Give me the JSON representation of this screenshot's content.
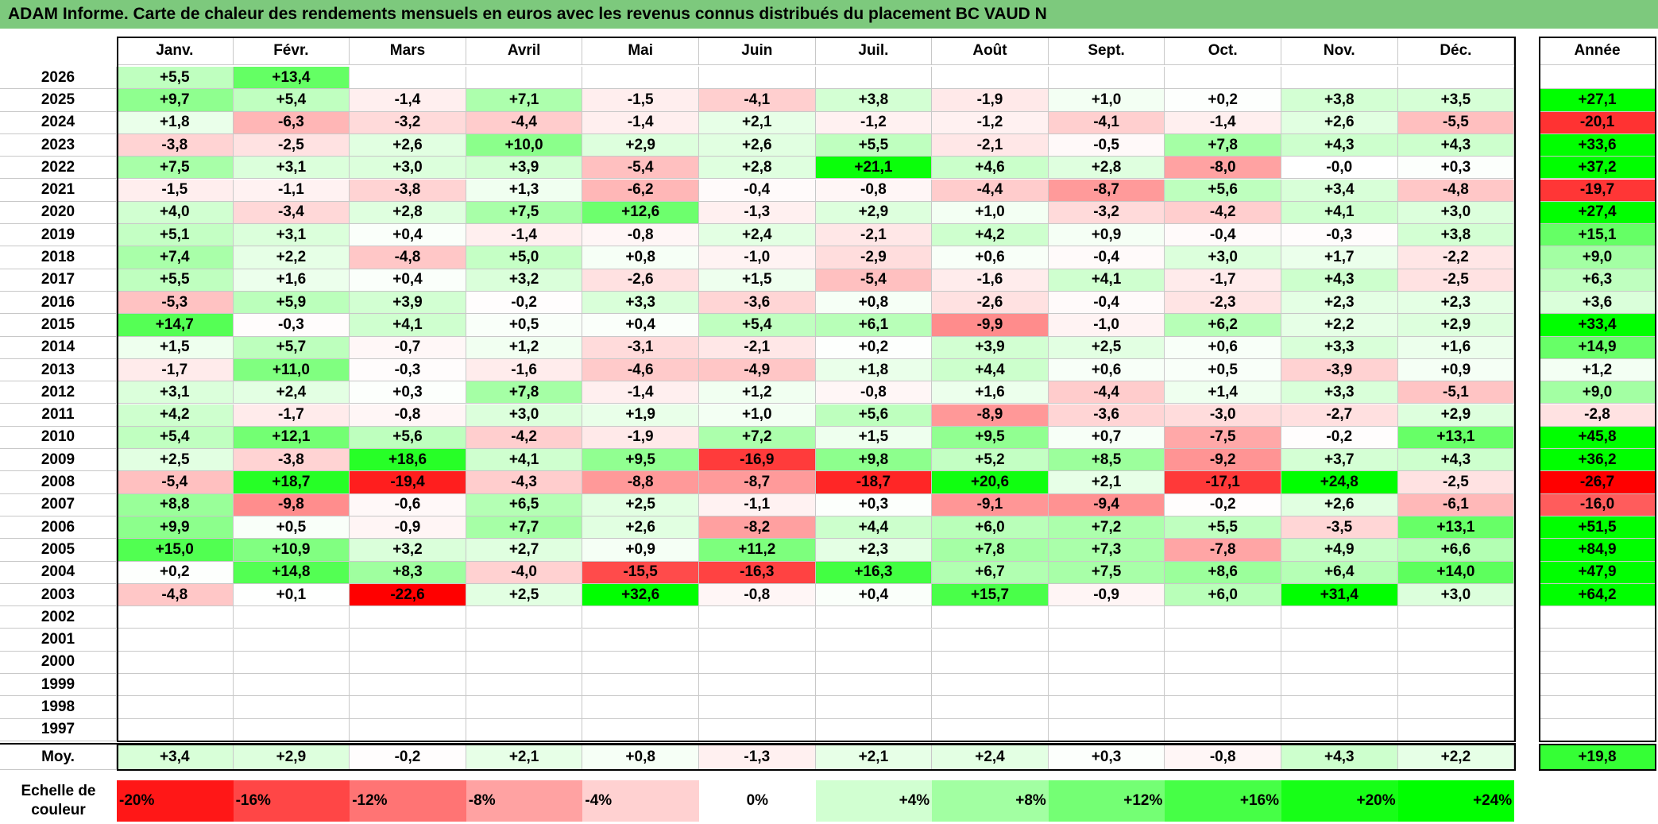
{
  "title": "ADAM Informe. Carte de chaleur des rendements mensuels en euros avec les revenus connus distribués du placement BC VAUD N",
  "chart_data": {
    "type": "heatmap",
    "title": "ADAM Informe. Carte de chaleur des rendements mensuels en euros avec les revenus connus distribués du placement BC VAUD N",
    "months": [
      "Janv.",
      "Févr.",
      "Mars",
      "Avril",
      "Mai",
      "Juin",
      "Juil.",
      "Août",
      "Sept.",
      "Oct.",
      "Nov.",
      "Déc."
    ],
    "year_header": "Année",
    "rows": [
      {
        "year": "2026",
        "values": [
          "+5,5",
          "+13,4",
          "",
          "",
          "",
          "",
          "",
          "",
          "",
          "",
          "",
          ""
        ],
        "annual": ""
      },
      {
        "year": "2025",
        "values": [
          "+9,7",
          "+5,4",
          "-1,4",
          "+7,1",
          "-1,5",
          "-4,1",
          "+3,8",
          "-1,9",
          "+1,0",
          "+0,2",
          "+3,8",
          "+3,5"
        ],
        "annual": "+27,1"
      },
      {
        "year": "2024",
        "values": [
          "+1,8",
          "-6,3",
          "-3,2",
          "-4,4",
          "-1,4",
          "+2,1",
          "-1,2",
          "-1,2",
          "-4,1",
          "-1,4",
          "+2,6",
          "-5,5"
        ],
        "annual": "-20,1"
      },
      {
        "year": "2023",
        "values": [
          "-3,8",
          "-2,5",
          "+2,6",
          "+10,0",
          "+2,9",
          "+2,6",
          "+5,5",
          "-2,1",
          "-0,5",
          "+7,8",
          "+4,3",
          "+4,3"
        ],
        "annual": "+33,6"
      },
      {
        "year": "2022",
        "values": [
          "+7,5",
          "+3,1",
          "+3,0",
          "+3,9",
          "-5,4",
          "+2,8",
          "+21,1",
          "+4,6",
          "+2,8",
          "-8,0",
          "-0,0",
          "+0,3"
        ],
        "annual": "+37,2"
      },
      {
        "year": "2021",
        "values": [
          "-1,5",
          "-1,1",
          "-3,8",
          "+1,3",
          "-6,2",
          "-0,4",
          "-0,8",
          "-4,4",
          "-8,7",
          "+5,6",
          "+3,4",
          "-4,8"
        ],
        "annual": "-19,7"
      },
      {
        "year": "2020",
        "values": [
          "+4,0",
          "-3,4",
          "+2,8",
          "+7,5",
          "+12,6",
          "-1,3",
          "+2,9",
          "+1,0",
          "-3,2",
          "-4,2",
          "+4,1",
          "+3,0"
        ],
        "annual": "+27,4"
      },
      {
        "year": "2019",
        "values": [
          "+5,1",
          "+3,1",
          "+0,4",
          "-1,4",
          "-0,8",
          "+2,4",
          "-2,1",
          "+4,2",
          "+0,9",
          "-0,4",
          "-0,3",
          "+3,8"
        ],
        "annual": "+15,1"
      },
      {
        "year": "2018",
        "values": [
          "+7,4",
          "+2,2",
          "-4,8",
          "+5,0",
          "+0,8",
          "-1,0",
          "-2,9",
          "+0,6",
          "-0,4",
          "+3,0",
          "+1,7",
          "-2,2"
        ],
        "annual": "+9,0"
      },
      {
        "year": "2017",
        "values": [
          "+5,5",
          "+1,6",
          "+0,4",
          "+3,2",
          "-2,6",
          "+1,5",
          "-5,4",
          "-1,6",
          "+4,1",
          "-1,7",
          "+4,3",
          "-2,5"
        ],
        "annual": "+6,3"
      },
      {
        "year": "2016",
        "values": [
          "-5,3",
          "+5,9",
          "+3,9",
          "-0,2",
          "+3,3",
          "-3,6",
          "+0,8",
          "-2,6",
          "-0,4",
          "-2,3",
          "+2,3",
          "+2,3"
        ],
        "annual": "+3,6"
      },
      {
        "year": "2015",
        "values": [
          "+14,7",
          "-0,3",
          "+4,1",
          "+0,5",
          "+0,4",
          "+5,4",
          "+6,1",
          "-9,9",
          "-1,0",
          "+6,2",
          "+2,2",
          "+2,9"
        ],
        "annual": "+33,4"
      },
      {
        "year": "2014",
        "values": [
          "+1,5",
          "+5,7",
          "-0,7",
          "+1,2",
          "-3,1",
          "-2,1",
          "+0,2",
          "+3,9",
          "+2,5",
          "+0,6",
          "+3,3",
          "+1,6"
        ],
        "annual": "+14,9"
      },
      {
        "year": "2013",
        "values": [
          "-1,7",
          "+11,0",
          "-0,3",
          "-1,6",
          "-4,6",
          "-4,9",
          "+1,8",
          "+4,4",
          "+0,6",
          "+0,5",
          "-3,9",
          "+0,9"
        ],
        "annual": "+1,2"
      },
      {
        "year": "2012",
        "values": [
          "+3,1",
          "+2,4",
          "+0,3",
          "+7,8",
          "-1,4",
          "+1,2",
          "-0,8",
          "+1,6",
          "-4,4",
          "+1,4",
          "+3,3",
          "-5,1"
        ],
        "annual": "+9,0"
      },
      {
        "year": "2011",
        "values": [
          "+4,2",
          "-1,7",
          "-0,8",
          "+3,0",
          "+1,9",
          "+1,0",
          "+5,6",
          "-8,9",
          "-3,6",
          "-3,0",
          "-2,7",
          "+2,9"
        ],
        "annual": "-2,8"
      },
      {
        "year": "2010",
        "values": [
          "+5,4",
          "+12,1",
          "+5,6",
          "-4,2",
          "-1,9",
          "+7,2",
          "+1,5",
          "+9,5",
          "+0,7",
          "-7,5",
          "-0,2",
          "+13,1"
        ],
        "annual": "+45,8"
      },
      {
        "year": "2009",
        "values": [
          "+2,5",
          "-3,8",
          "+18,6",
          "+4,1",
          "+9,5",
          "-16,9",
          "+9,8",
          "+5,2",
          "+8,5",
          "-9,2",
          "+3,7",
          "+4,3"
        ],
        "annual": "+36,2"
      },
      {
        "year": "2008",
        "values": [
          "-5,4",
          "+18,7",
          "-19,4",
          "-4,3",
          "-8,8",
          "-8,7",
          "-18,7",
          "+20,6",
          "+2,1",
          "-17,1",
          "+24,8",
          "-2,5"
        ],
        "annual": "-26,7"
      },
      {
        "year": "2007",
        "values": [
          "+8,8",
          "-9,8",
          "-0,6",
          "+6,5",
          "+2,5",
          "-1,1",
          "+0,3",
          "-9,1",
          "-9,4",
          "-0,2",
          "+2,6",
          "-6,1"
        ],
        "annual": "-16,0"
      },
      {
        "year": "2006",
        "values": [
          "+9,9",
          "+0,5",
          "-0,9",
          "+7,7",
          "+2,6",
          "-8,2",
          "+4,4",
          "+6,0",
          "+7,2",
          "+5,5",
          "-3,5",
          "+13,1"
        ],
        "annual": "+51,5"
      },
      {
        "year": "2005",
        "values": [
          "+15,0",
          "+10,9",
          "+3,2",
          "+2,7",
          "+0,9",
          "+11,2",
          "+2,3",
          "+7,8",
          "+7,3",
          "-7,8",
          "+4,9",
          "+6,6"
        ],
        "annual": "+84,9"
      },
      {
        "year": "2004",
        "values": [
          "+0,2",
          "+14,8",
          "+8,3",
          "-4,0",
          "-15,5",
          "-16,3",
          "+16,3",
          "+6,7",
          "+7,5",
          "+8,6",
          "+6,4",
          "+14,0"
        ],
        "annual": "+47,9"
      },
      {
        "year": "2003",
        "values": [
          "-4,8",
          "+0,1",
          "-22,6",
          "+2,5",
          "+32,6",
          "-0,8",
          "+0,4",
          "+15,7",
          "-0,9",
          "+6,0",
          "+31,4",
          "+3,0"
        ],
        "annual": "+64,2"
      },
      {
        "year": "2002",
        "values": [
          "",
          "",
          "",
          "",
          "",
          "",
          "",
          "",
          "",
          "",
          "",
          ""
        ],
        "annual": ""
      },
      {
        "year": "2001",
        "values": [
          "",
          "",
          "",
          "",
          "",
          "",
          "",
          "",
          "",
          "",
          "",
          ""
        ],
        "annual": ""
      },
      {
        "year": "2000",
        "values": [
          "",
          "",
          "",
          "",
          "",
          "",
          "",
          "",
          "",
          "",
          "",
          ""
        ],
        "annual": ""
      },
      {
        "year": "1999",
        "values": [
          "",
          "",
          "",
          "",
          "",
          "",
          "",
          "",
          "",
          "",
          "",
          ""
        ],
        "annual": ""
      },
      {
        "year": "1998",
        "values": [
          "",
          "",
          "",
          "",
          "",
          "",
          "",
          "",
          "",
          "",
          "",
          ""
        ],
        "annual": ""
      },
      {
        "year": "1997",
        "values": [
          "",
          "",
          "",
          "",
          "",
          "",
          "",
          "",
          "",
          "",
          "",
          ""
        ],
        "annual": ""
      }
    ],
    "average": {
      "label": "Moy.",
      "values": [
        "+3,4",
        "+2,9",
        "-0,2",
        "+2,1",
        "+0,8",
        "-1,3",
        "+2,1",
        "+2,4",
        "+0,3",
        "-0,8",
        "+4,3",
        "+2,2"
      ],
      "annual": "+19,8"
    },
    "scale": {
      "label": "Echelle de couleur",
      "steps": [
        "-20%",
        "-16%",
        "-12%",
        "-8%",
        "-4%",
        "0%",
        "+4%",
        "+8%",
        "+12%",
        "+16%",
        "+20%",
        "+24%"
      ],
      "step_values": [
        -20,
        -16,
        -12,
        -8,
        -4,
        0,
        4,
        8,
        12,
        16,
        20,
        24
      ]
    },
    "colors": {
      "negative": "#ff0000",
      "positive": "#00ff00",
      "neutral": "#ffffff",
      "title_bg": "#7dc97d"
    }
  }
}
